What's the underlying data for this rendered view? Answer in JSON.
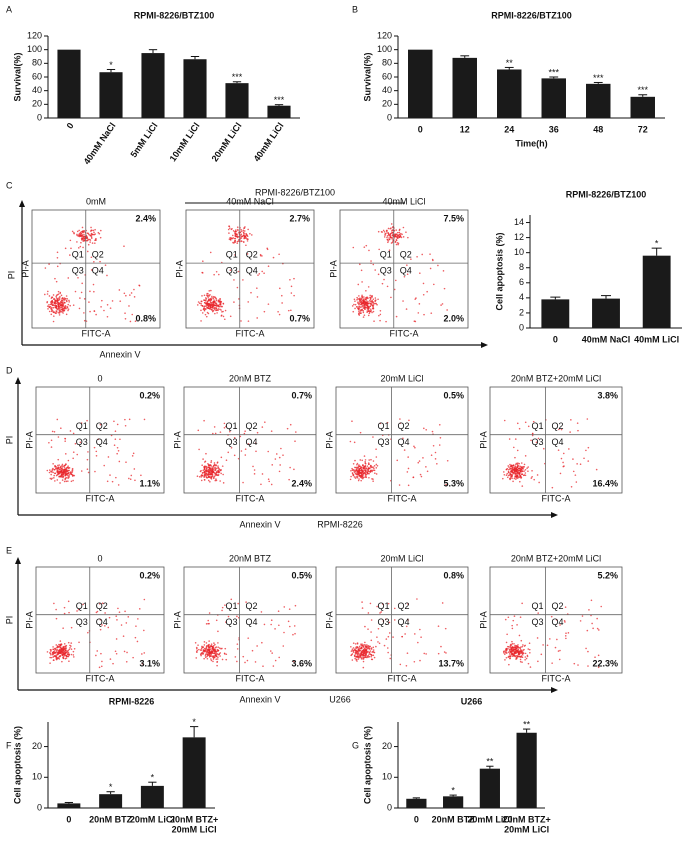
{
  "chart_data": [
    {
      "type": "bar",
      "panel": "A",
      "title": "RPMI-8226/BTZ100",
      "ylabel": "Survival(%)",
      "color": "#1a1a1a",
      "categories": [
        "0",
        "40mM NaCl",
        "5mM LiCl",
        "10mM LiCl",
        "20mM LiCl",
        "40mM LiCl"
      ],
      "values": [
        100,
        67,
        95,
        86,
        51,
        18
      ],
      "errors": [
        0,
        4,
        5,
        4,
        2,
        1.5
      ],
      "significance": [
        null,
        "*",
        null,
        null,
        "***",
        "***"
      ],
      "ylim": [
        0,
        120
      ],
      "yticks": [
        0,
        20,
        40,
        60,
        80,
        100,
        120
      ]
    },
    {
      "type": "bar",
      "panel": "B",
      "title": "RPMI-8226/BTZ100",
      "ylabel": "Survival(%)",
      "xlabel": "Time(h)",
      "color": "#1a1a1a",
      "categories": [
        "0",
        "12",
        "24",
        "36",
        "48",
        "72"
      ],
      "values": [
        100,
        88,
        71,
        58,
        50,
        31
      ],
      "errors": [
        0,
        3,
        3,
        2,
        2,
        3
      ],
      "significance": [
        null,
        null,
        "**",
        "***",
        "***",
        "***"
      ],
      "ylim": [
        0,
        120
      ],
      "yticks": [
        0,
        20,
        40,
        60,
        80,
        100,
        120
      ]
    },
    {
      "type": "flow",
      "panel": "C",
      "subtitle": "RPMI-8226/BTZ100",
      "xlabel": "Annexin V",
      "ylabel": "PI",
      "x_channel": "FITC-A",
      "y_channel": "PI-A",
      "quadrants": [
        "Q1",
        "Q2",
        "Q3",
        "Q4"
      ],
      "categories": [
        "0mM",
        "40mM NaCl",
        "40mM LiCl"
      ],
      "series": [
        {
          "values": [
            2.4,
            2.7,
            7.5
          ],
          "value_labels": [
            "2.4%",
            "2.7%",
            "7.5%"
          ]
        },
        {
          "values": [
            0.8,
            0.7,
            2.0
          ],
          "value_labels": [
            "0.8%",
            "0.7%",
            "2.0%"
          ]
        }
      ]
    },
    {
      "type": "bar",
      "title": "RPMI-8226/BTZ100",
      "ylabel": "Cell apoptosis (%)",
      "color": "#1a1a1a",
      "categories": [
        "0",
        "40mM NaCl",
        "40mM LiCl"
      ],
      "values": [
        3.8,
        3.9,
        9.6
      ],
      "errors": [
        0.3,
        0.4,
        1.0
      ],
      "significance": [
        null,
        null,
        "*"
      ],
      "ylim": [
        0,
        15
      ],
      "yticks": [
        0,
        2,
        4,
        6,
        8,
        10,
        12,
        14
      ]
    },
    {
      "type": "flow",
      "panel": "D",
      "subtitle": "RPMI-8226",
      "xlabel": "Annexin V",
      "ylabel": "PI",
      "x_channel": "FITC-A",
      "y_channel": "PI-A",
      "quadrants": [
        "Q1",
        "Q2",
        "Q3",
        "Q4"
      ],
      "categories": [
        "0",
        "20nM BTZ",
        "20mM LiCl",
        "20nM BTZ+20mM LiCl"
      ],
      "series": [
        {
          "values": [
            0.2,
            0.7,
            0.5,
            3.8
          ],
          "value_labels": [
            "0.2%",
            "0.7%",
            "0.5%",
            "3.8%"
          ]
        },
        {
          "values": [
            1.1,
            2.4,
            5.3,
            16.4
          ],
          "value_labels": [
            "1.1%",
            "2.4%",
            "5.3%",
            "16.4%"
          ]
        }
      ]
    },
    {
      "type": "flow",
      "panel": "E",
      "subtitle": "U266",
      "xlabel": "Annexin V",
      "ylabel": "PI",
      "x_channel": "FITC-A",
      "y_channel": "PI-A",
      "quadrants": [
        "Q1",
        "Q2",
        "Q3",
        "Q4"
      ],
      "categories": [
        "0",
        "20nM BTZ",
        "20mM LiCl",
        "20nM BTZ+20mM LiCl"
      ],
      "series": [
        {
          "values": [
            0.2,
            0.5,
            0.8,
            5.2
          ],
          "value_labels": [
            "0.2%",
            "0.5%",
            "0.8%",
            "5.2%"
          ]
        },
        {
          "values": [
            3.1,
            3.6,
            13.7,
            22.3
          ],
          "value_labels": [
            "3.1%",
            "3.6%",
            "13.7%",
            "22.3%"
          ]
        }
      ]
    },
    {
      "type": "bar",
      "panel": "F",
      "title": "RPMI-8226",
      "ylabel": "Cell apoptosis (%)",
      "color": "#1a1a1a",
      "categories": [
        "0",
        "20nM BTZ",
        "20mM LiCl",
        [
          "20nM BTZ+",
          "20mM LiCl"
        ]
      ],
      "values": [
        1.5,
        4.5,
        7.2,
        23
      ],
      "errors": [
        0.3,
        0.8,
        1.2,
        3.5
      ],
      "significance": [
        null,
        "*",
        "*",
        "*"
      ],
      "ylim": [
        0,
        28
      ],
      "yticks": [
        0,
        10,
        20
      ]
    },
    {
      "type": "bar",
      "panel": "G",
      "title": "U266",
      "ylabel": "Cell apoptosis (%)",
      "color": "#1a1a1a",
      "categories": [
        "0",
        "20nM BTZ",
        "20mM LiCl",
        [
          "20nM BTZ+",
          "20mM LiCl"
        ]
      ],
      "values": [
        3,
        3.8,
        12.8,
        24.5
      ],
      "errors": [
        0.3,
        0.4,
        0.8,
        1.2
      ],
      "significance": [
        null,
        "*",
        "**",
        "**"
      ],
      "ylim": [
        0,
        28
      ],
      "yticks": [
        0,
        10,
        20
      ]
    }
  ]
}
